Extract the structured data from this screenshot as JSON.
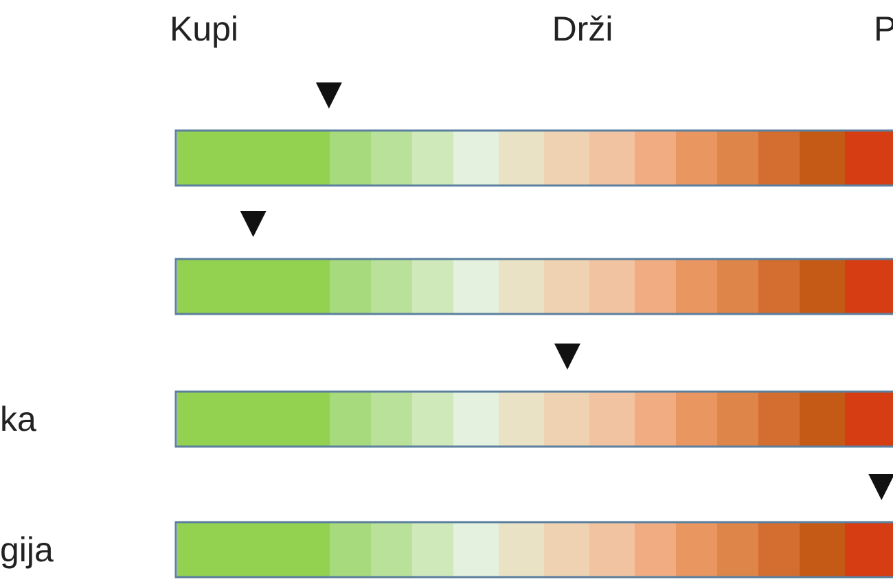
{
  "header": {
    "labels": [
      "Kupi",
      "Drži",
      "P"
    ]
  },
  "scale": [
    -1,
    1
  ],
  "segment_colors": [
    "#93d150",
    "#a7da7c",
    "#b9e19a",
    "#cfe9bb",
    "#e3f1de",
    "#eae2c5",
    "#efd2b1",
    "#f2c3a0",
    "#f1ac82",
    "#e99661",
    "#de8549",
    "#d36d30",
    "#c55a17",
    "#d73d12"
  ],
  "rows": [
    {
      "marker": -0.67
    },
    {
      "marker": -0.87
    },
    {
      "label": "ka",
      "marker": -0.04
    },
    {
      "label": "gija",
      "marker": 0.79
    }
  ]
}
